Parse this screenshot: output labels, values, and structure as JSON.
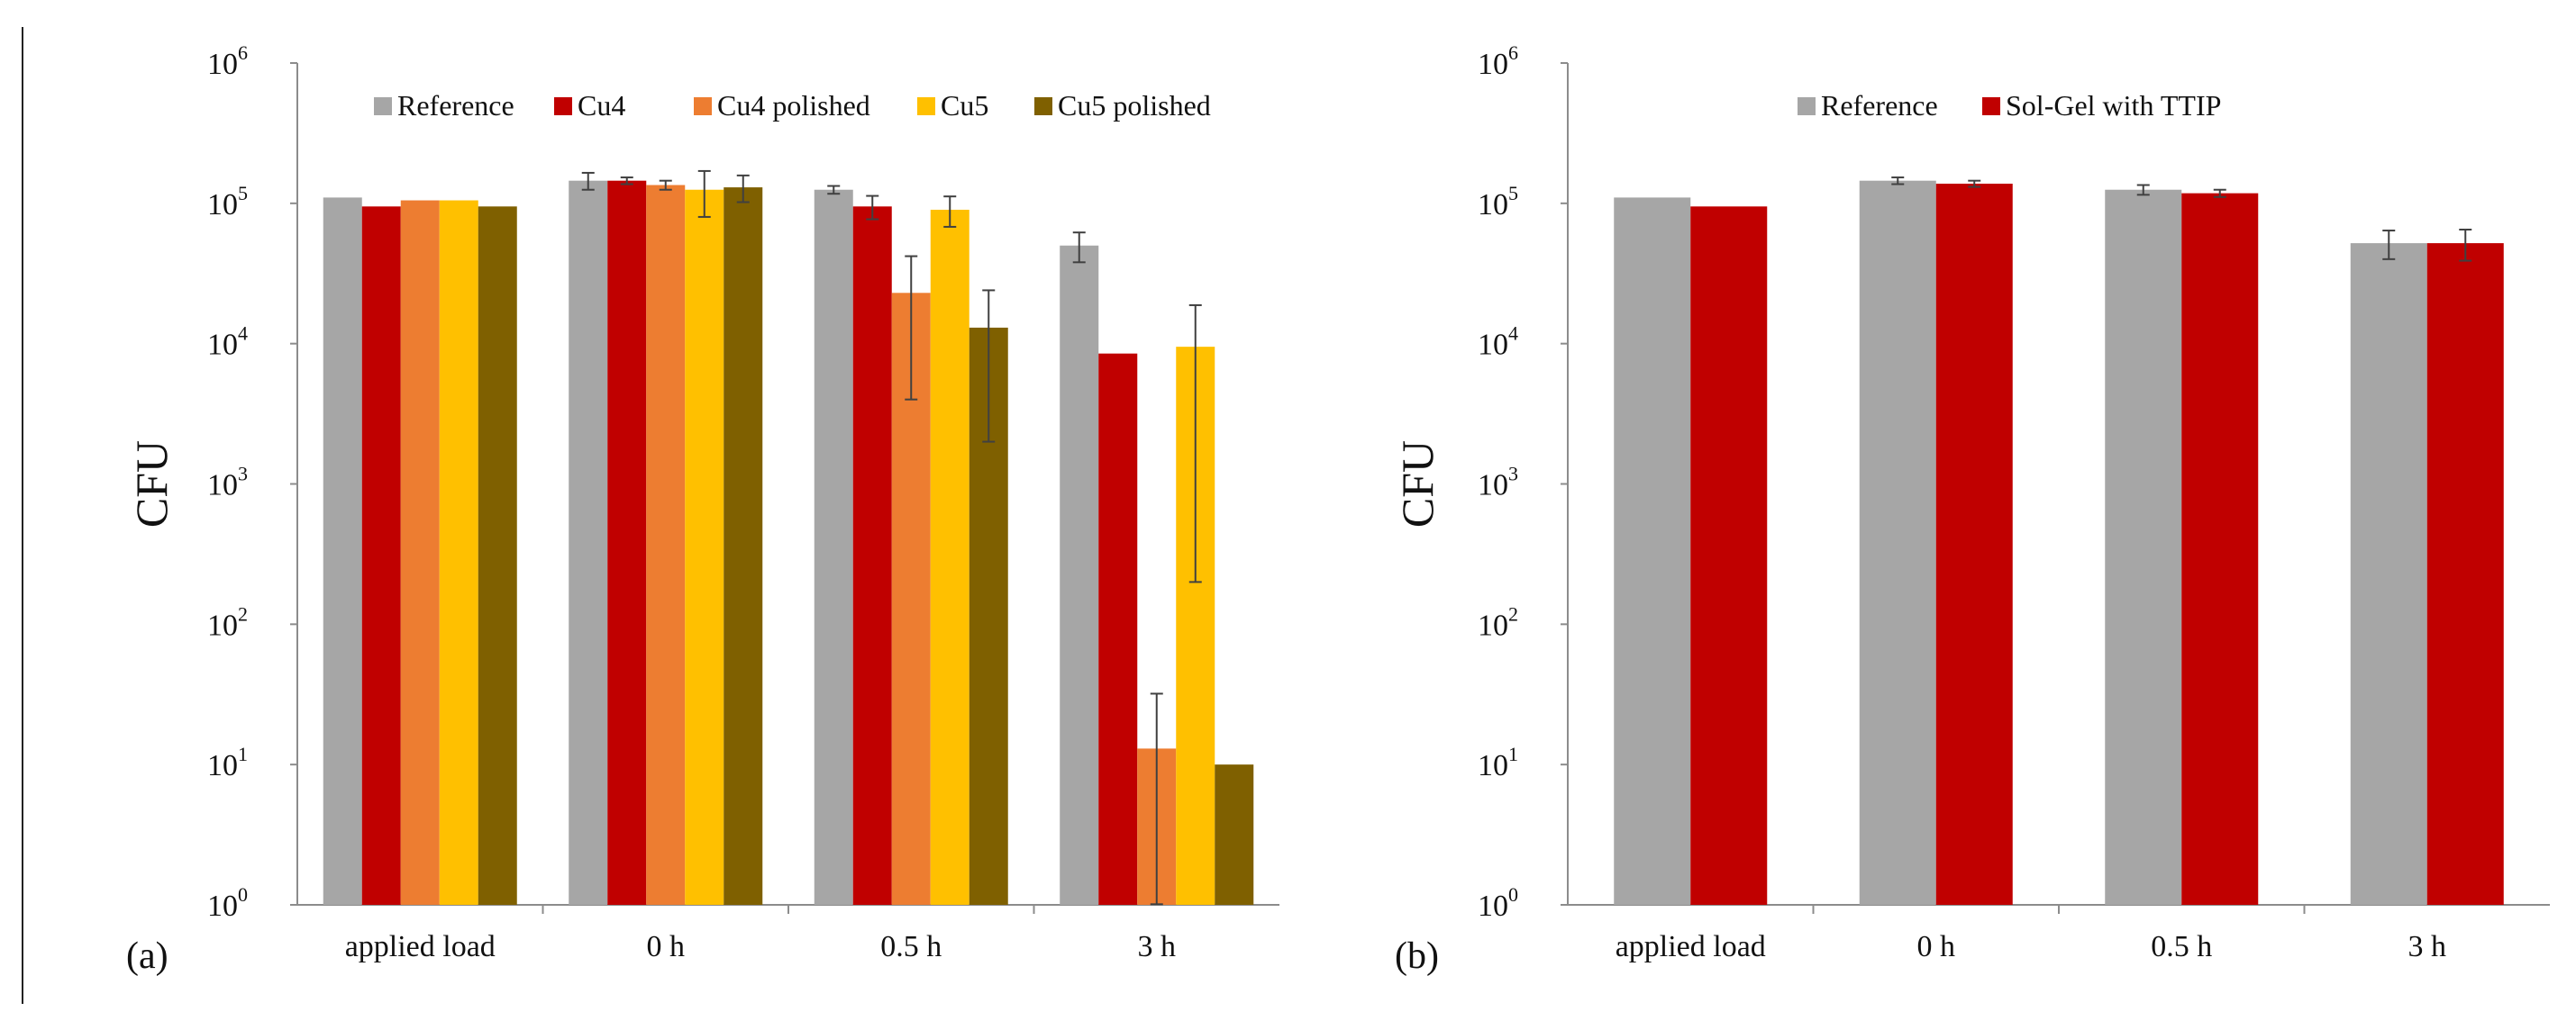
{
  "chart_data": [
    {
      "type": "bar",
      "panel_label": "(a)",
      "ylabel": "CFU",
      "yscale": "log",
      "ylim": [
        1,
        1000000
      ],
      "ytick_base": "10",
      "ytick_exponents": [
        "0",
        "1",
        "2",
        "3",
        "4",
        "5",
        "6"
      ],
      "categories": [
        "applied load",
        "0 h",
        "0.5 h",
        "3 h"
      ],
      "legend_position": "top",
      "series": [
        {
          "name": "Reference",
          "color": "#a6a6a6",
          "values": [
            110000,
            145000,
            125000,
            50000
          ],
          "errors": [
            null,
            20000,
            8000,
            12000
          ]
        },
        {
          "name": "Cu4",
          "color": "#c00000",
          "values": [
            95000,
            145000,
            95000,
            8500
          ],
          "errors": [
            null,
            8000,
            18000,
            null
          ]
        },
        {
          "name": "Cu4 polished",
          "color": "#ed7d31",
          "values": [
            105000,
            135000,
            23000,
            13
          ],
          "errors": [
            null,
            10000,
            19000,
            19
          ]
        },
        {
          "name": "Cu5",
          "color": "#ffc000",
          "values": [
            105000,
            125000,
            90000,
            9500
          ],
          "errors": [
            null,
            45000,
            22000,
            9300
          ]
        },
        {
          "name": "Cu5 polished",
          "color": "#7f6000",
          "values": [
            95000,
            130000,
            13000,
            10
          ],
          "errors": [
            null,
            28000,
            11000,
            null
          ]
        }
      ]
    },
    {
      "type": "bar",
      "panel_label": "(b)",
      "ylabel": "CFU",
      "yscale": "log",
      "ylim": [
        1,
        1000000
      ],
      "ytick_base": "10",
      "ytick_exponents": [
        "0",
        "1",
        "2",
        "3",
        "4",
        "5",
        "6"
      ],
      "categories": [
        "applied load",
        "0 h",
        "0.5 h",
        "3 h"
      ],
      "legend_position": "top",
      "series": [
        {
          "name": "Reference",
          "color": "#a6a6a6",
          "values": [
            110000,
            145000,
            125000,
            52000
          ],
          "errors": [
            null,
            8000,
            10000,
            12000
          ]
        },
        {
          "name": "Sol-Gel with TTIP",
          "color": "#c00000",
          "values": [
            95000,
            138000,
            118000,
            52000
          ],
          "errors": [
            null,
            7000,
            7000,
            13000
          ]
        }
      ]
    }
  ]
}
